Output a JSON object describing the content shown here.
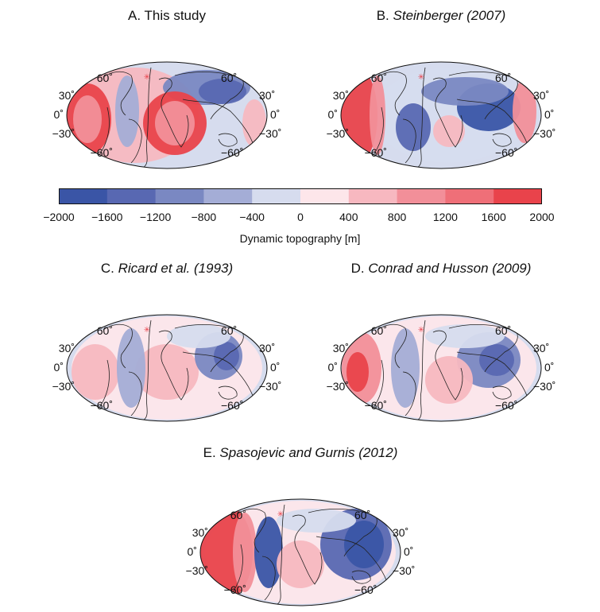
{
  "panels": [
    {
      "letter": "A.",
      "title": "This study",
      "italic": false
    },
    {
      "letter": "B.",
      "title": "Steinberger (2007)",
      "italic": true
    },
    {
      "letter": "C.",
      "title": "Ricard et al. (1993)",
      "italic": true
    },
    {
      "letter": "D.",
      "title": "Conrad and Husson (2009)",
      "italic": true
    },
    {
      "letter": "E.",
      "title": "Spasojevic and Gurnis (2012)",
      "italic": true
    }
  ],
  "lat_labels": [
    "60˚",
    "30˚",
    "0˚",
    "−30˚",
    "−60˚"
  ],
  "colorbar": {
    "title": "Dynamic topography [m]",
    "ticks": [
      "−2000",
      "−1600",
      "−1200",
      "−800",
      "−400",
      "0",
      "400",
      "800",
      "1200",
      "1600",
      "2000"
    ],
    "colors": [
      "#3a55a6",
      "#5868b2",
      "#7a88c2",
      "#a4add6",
      "#d6dcee",
      "#fde6ea",
      "#f7b8c0",
      "#f28f99",
      "#ef6f78",
      "#e9434b"
    ]
  }
}
